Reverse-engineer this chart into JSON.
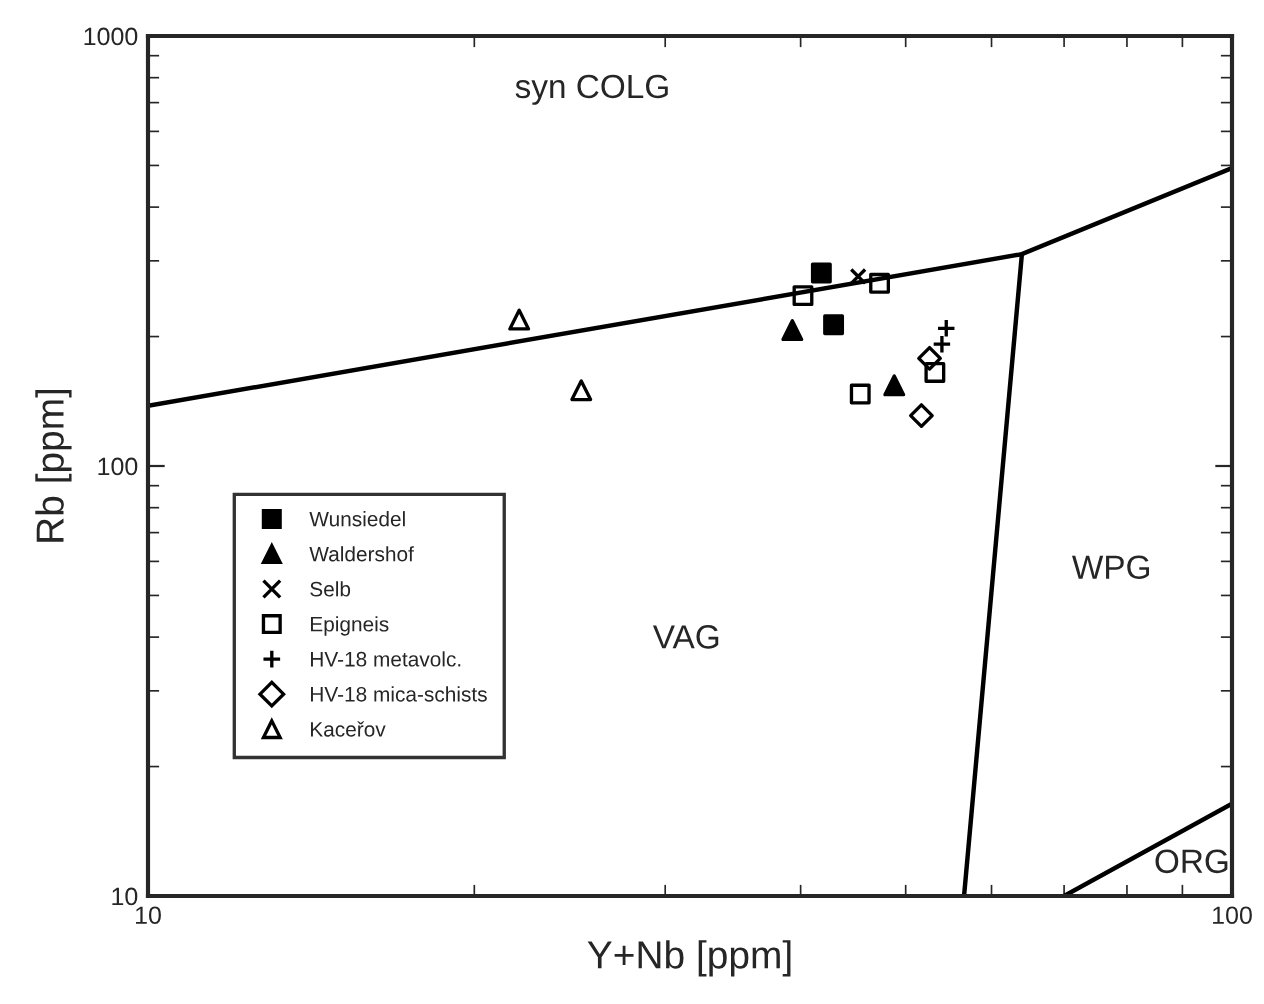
{
  "chart_data": {
    "type": "scatter",
    "xlabel": "Y+Nb [ppm]",
    "ylabel": "Rb [ppm]",
    "log": "xy",
    "xlim": [
      10,
      100
    ],
    "ylim": [
      10,
      1000
    ],
    "xticks": [
      10,
      100
    ],
    "yticks": [
      10,
      100,
      1000
    ],
    "grid": false,
    "legend": "center left",
    "series": [
      {
        "name": "Wunsiedel",
        "color": "#000000",
        "marker": "square",
        "x": [
          41.8,
          42.9
        ],
        "values": [
          281,
          213
        ]
      },
      {
        "name": "Waldershof",
        "color": "#000000",
        "marker": "triangle",
        "x": [
          39.3,
          48.8
        ],
        "values": [
          207,
          154
        ]
      },
      {
        "name": "Selb",
        "color": "#000000",
        "marker": "cross",
        "x": [
          45.2
        ],
        "values": [
          276
        ]
      },
      {
        "name": "Epigneis",
        "color": "#000000",
        "marker": "square-open",
        "x": [
          40.2,
          47.3,
          45.4,
          53.2
        ],
        "values": [
          249,
          266,
          147,
          165
        ]
      },
      {
        "name": "HV-18 metavolc.",
        "color": "#000000",
        "marker": "plus",
        "x": [
          54.5,
          54.0
        ],
        "values": [
          209,
          192
        ]
      },
      {
        "name": "HV-18 mica-schists",
        "color": "#000000",
        "marker": "diamond-open",
        "x": [
          52.6,
          51.7
        ],
        "values": [
          178,
          131
        ]
      },
      {
        "name": "Kaceřov",
        "color": "#000000",
        "marker": "triangle-open",
        "x": [
          22.0,
          25.1
        ],
        "values": [
          219,
          150
        ]
      },
      {
        "type": "line",
        "color": "#000000",
        "x": [
          10,
          64,
          100
        ],
        "values": [
          138,
          311,
          493
        ]
      },
      {
        "type": "line",
        "color": "#000000",
        "x": [
          64,
          56.6
        ],
        "values": [
          311,
          10
        ]
      },
      {
        "type": "line",
        "color": "#000000",
        "x": [
          70,
          100
        ],
        "values": [
          10,
          16.4
        ]
      }
    ],
    "annotations": [
      "syn COLG",
      "VAG",
      "WPG",
      "ORG"
    ]
  }
}
